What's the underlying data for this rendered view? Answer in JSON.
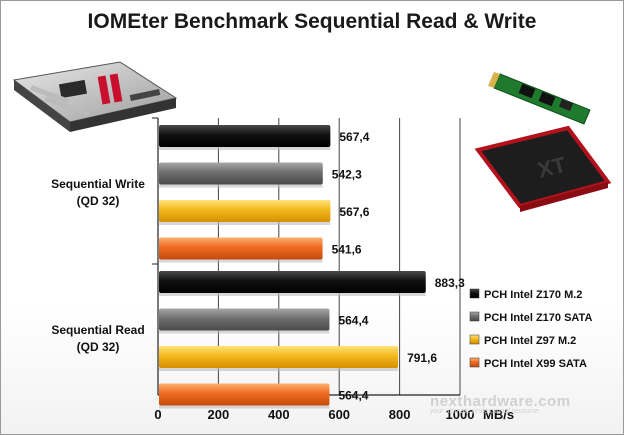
{
  "chart_data": {
    "type": "bar",
    "orientation": "horizontal",
    "title": "IOMEter Benchmark Sequential Read & Write",
    "categories": [
      {
        "label_line1": "Sequential Write",
        "label_line2": "(QD 32)"
      },
      {
        "label_line1": "Sequential Read",
        "label_line2": "(QD 32)"
      }
    ],
    "series": [
      {
        "name": "PCH Intel Z170 M.2",
        "color": "#111111",
        "values": [
          567.4,
          883.3
        ],
        "labels": [
          "567,4",
          "883,3"
        ]
      },
      {
        "name": "PCH Intel Z170 SATA",
        "color": "#6e6e6e",
        "values": [
          542.3,
          564.4
        ],
        "labels": [
          "542,3",
          "564,4"
        ]
      },
      {
        "name": "PCH Intel Z97 M.2",
        "color": "#f3b81e",
        "values": [
          567.6,
          791.6
        ],
        "labels": [
          "567,6",
          "791,6"
        ]
      },
      {
        "name": "PCH Intel X99 SATA",
        "color": "#ee6a22",
        "values": [
          541.6,
          564.4
        ],
        "labels": [
          "541,6",
          "564,4"
        ]
      }
    ],
    "xlabel": "MB/s",
    "xlim": [
      0,
      1000
    ],
    "xticks": [
      "0",
      "200",
      "400",
      "600",
      "800",
      "1000"
    ],
    "grid": true,
    "legend_position": "right"
  },
  "watermark": {
    "main": "nexthardware.com",
    "sub": "your ultimate professional resource"
  },
  "images": [
    {
      "icon": "motherboard-photo"
    },
    {
      "icon": "m2-ssd-photo"
    },
    {
      "icon": "sata-ssd-photo"
    }
  ]
}
